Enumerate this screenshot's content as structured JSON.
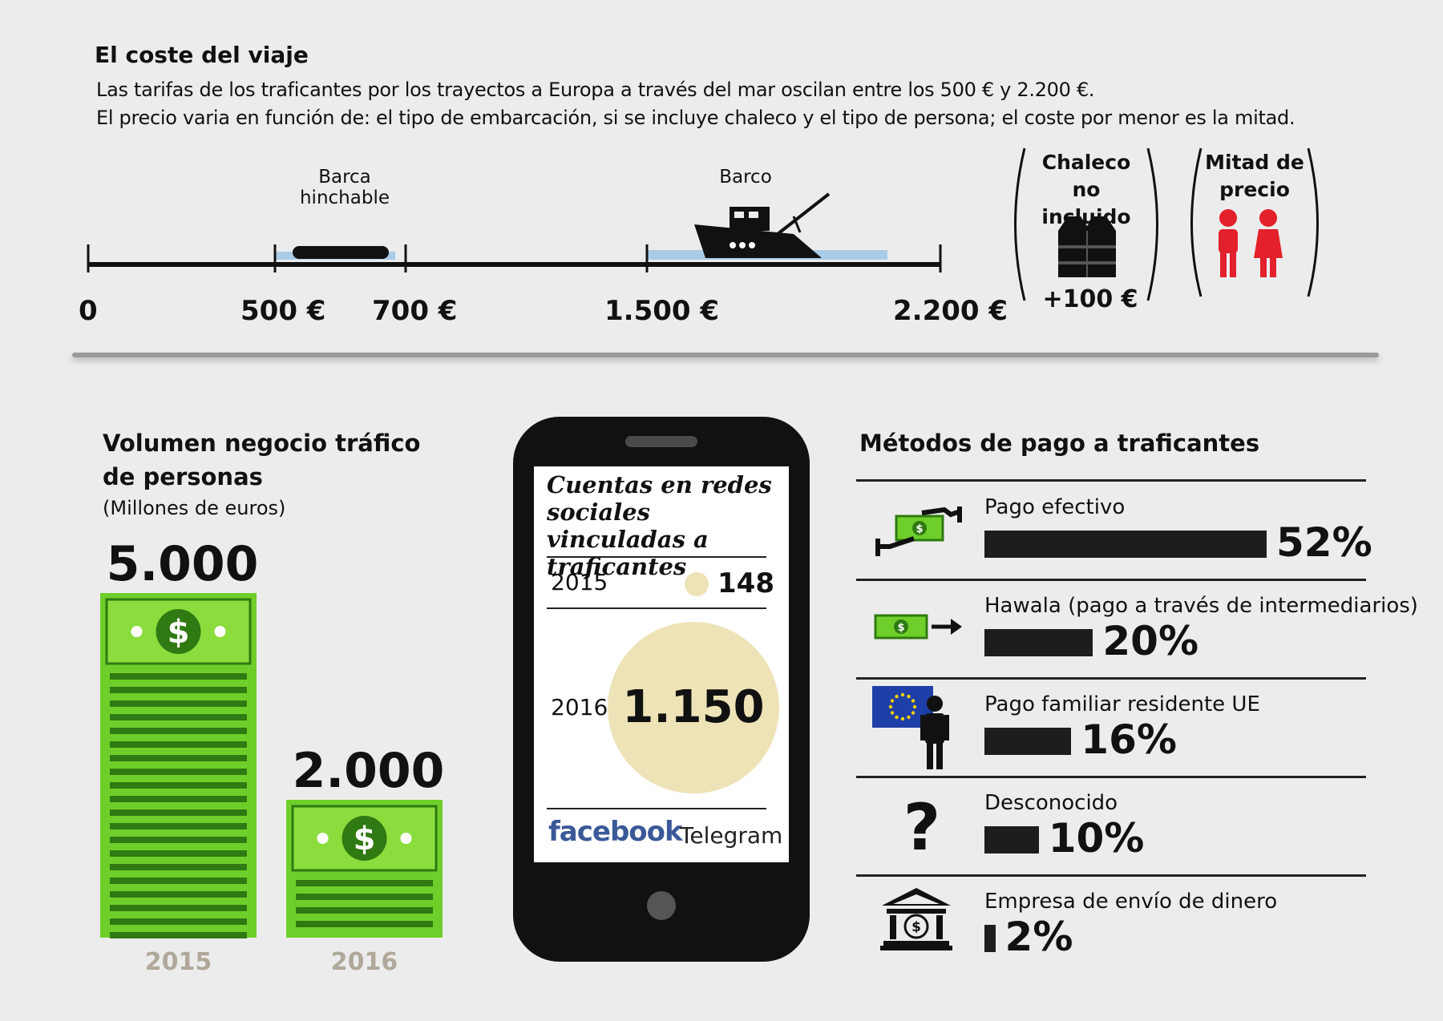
{
  "cost": {
    "title": "El coste del viaje",
    "line1": "Las tarifas de los traficantes por los trayectos a Europa a través del mar oscilan entre los 500 € y 2.200 €.",
    "line2": "El precio varia en función de: el tipo de embarcación, si se incluye chaleco y el tipo de persona; el coste por menor es la mitad.",
    "ticks": [
      "0",
      "500 €",
      "700 €",
      "1.500 €",
      "2.200 €"
    ],
    "boat1": "Barca hinchable",
    "boat2": "Barco",
    "vest_title": "Chaleco no incluido",
    "vest_value": "+100 €",
    "half_title": "Mitad de precio",
    "colors": {
      "water": "#a9cbe6",
      "child": "#e3202b"
    }
  },
  "volume": {
    "title_line1": "Volumen negocio tráfico",
    "title_line2": "de personas",
    "unit": "(Millones de euros)",
    "color": "#6fcf2a"
  },
  "social": {
    "title": "Cuentas en redes sociales vinculadas a traficantes",
    "year1": "2015",
    "value1": "148",
    "year2": "2016",
    "value2": "1.150",
    "brand1": "facebook",
    "brand2": "Telegram",
    "colors": {
      "circle": "#ede3b6",
      "facebook": "#3b5998"
    }
  },
  "payment": {
    "title": "Métodos de pago a traficantes",
    "icons": [
      "cash-handover-icon",
      "money-transfer-icon",
      "eu-flag-person-icon",
      "question-mark-icon",
      "bank-icon"
    ]
  },
  "chart_data": [
    {
      "type": "bar",
      "title": "Volumen negocio tráfico de personas",
      "ylabel": "(Millones de euros)",
      "categories": [
        "2015",
        "2016"
      ],
      "values": [
        5000,
        2000
      ],
      "value_labels": [
        "5.000",
        "2.000"
      ]
    },
    {
      "type": "bar",
      "title": "Métodos de pago a traficantes",
      "categories": [
        "Pago efectivo",
        "Hawala (pago a través de intermediarios)",
        "Pago familiar residente UE",
        "Desconocido",
        "Empresa de envío de dinero"
      ],
      "values": [
        52,
        20,
        16,
        10,
        2
      ],
      "value_labels": [
        "52%",
        "20%",
        "16%",
        "10%",
        "2%"
      ]
    }
  ]
}
